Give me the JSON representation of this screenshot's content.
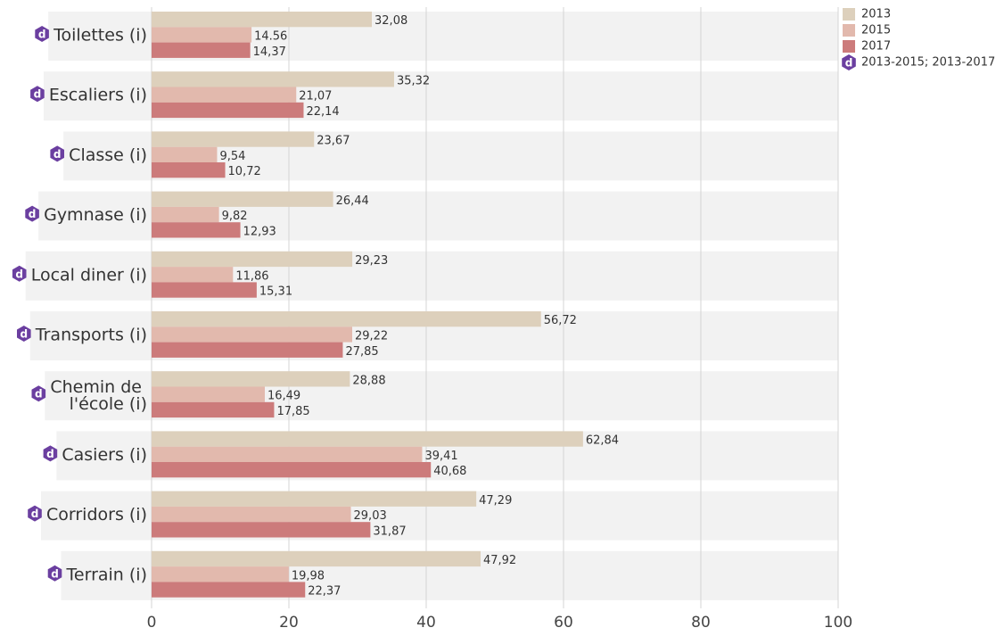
{
  "chart_data": {
    "type": "bar",
    "orientation": "horizontal",
    "categories": [
      "Toilettes (i)",
      "Escaliers (i)",
      "Classe (i)",
      "Gymnase (i)",
      "Local diner (i)",
      "Transports (i)",
      "Chemin de l'école (i)",
      "Casiers (i)",
      "Corridors (i)",
      "Terrain (i)"
    ],
    "series": [
      {
        "name": "2013",
        "color": "#ddd0bc",
        "values": [
          32.08,
          35.32,
          23.67,
          26.44,
          29.23,
          56.72,
          28.88,
          62.84,
          47.29,
          47.92
        ],
        "value_labels": [
          "32,08",
          "35,32",
          "23,67",
          "26,44",
          "29,23",
          "56,72",
          "28,88",
          "62,84",
          "47,29",
          "47,92"
        ]
      },
      {
        "name": "2015",
        "color": "#e2b9ad",
        "values": [
          14.56,
          21.07,
          9.54,
          9.82,
          11.86,
          29.22,
          16.49,
          39.41,
          29.03,
          19.98
        ],
        "value_labels": [
          "14.56",
          "21,07",
          "9,54",
          "9,82",
          "11,86",
          "29,22",
          "16,49",
          "39,41",
          "29,03",
          "19,98"
        ]
      },
      {
        "name": "2017",
        "color": "#cc7b7b",
        "values": [
          14.37,
          22.14,
          10.72,
          12.93,
          15.31,
          27.85,
          17.85,
          40.68,
          31.87,
          22.37
        ],
        "value_labels": [
          "14,37",
          "22,14",
          "10,72",
          "12,93",
          "15,31",
          "27,85",
          "17,85",
          "40,68",
          "31,87",
          "22,37"
        ]
      }
    ],
    "badge": "d",
    "badge_note": "2013-2015; 2013-2017",
    "badge_color": "#6b3fa0",
    "xlim": [
      0,
      100
    ],
    "xticks": [
      0,
      20,
      40,
      60,
      80,
      100
    ],
    "grid": true
  }
}
